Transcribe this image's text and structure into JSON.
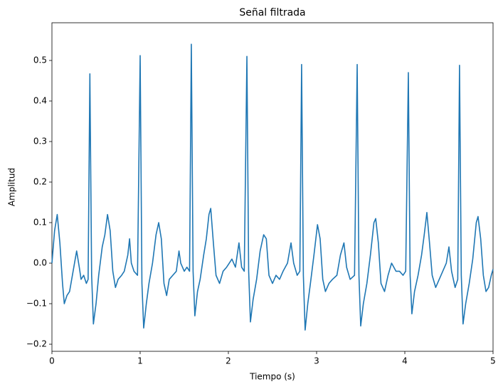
{
  "chart_data": {
    "type": "line",
    "title": "Señal filtrada",
    "x_label": "Tiempo (s)",
    "y_label": "Amplitud",
    "xlim": [
      0,
      5
    ],
    "ylim": [
      -0.2175,
      0.593
    ],
    "xticks": [
      0,
      1,
      2,
      3,
      4,
      5
    ],
    "yticks": [
      {
        "value": -0.2,
        "label": "−0.2"
      },
      {
        "value": -0.1,
        "label": "−0.1"
      },
      {
        "value": 0,
        "label": "0.0"
      },
      0.1,
      0.2,
      0.3,
      0.4,
      0.5
    ],
    "grid": false,
    "x": [
      0,
      0.03,
      0.06,
      0.09,
      0.12,
      0.14,
      0.17,
      0.2,
      0.24,
      0.28,
      0.31,
      0.33,
      0.36,
      0.39,
      0.41,
      0.43,
      0.45,
      0.47,
      0.5,
      0.53,
      0.57,
      0.6,
      0.63,
      0.66,
      0.69,
      0.72,
      0.75,
      0.79,
      0.82,
      0.86,
      0.88,
      0.9,
      0.93,
      0.97,
      1.0,
      1.02,
      1.04,
      1.07,
      1.1,
      1.14,
      1.18,
      1.21,
      1.24,
      1.27,
      1.3,
      1.33,
      1.37,
      1.41,
      1.44,
      1.46,
      1.5,
      1.53,
      1.56,
      1.58,
      1.6,
      1.62,
      1.65,
      1.68,
      1.72,
      1.75,
      1.78,
      1.8,
      1.83,
      1.86,
      1.9,
      1.94,
      1.98,
      2.01,
      2.04,
      2.08,
      2.12,
      2.15,
      2.18,
      2.21,
      2.23,
      2.25,
      2.28,
      2.32,
      2.36,
      2.4,
      2.43,
      2.46,
      2.5,
      2.54,
      2.58,
      2.62,
      2.67,
      2.71,
      2.74,
      2.78,
      2.81,
      2.83,
      2.85,
      2.87,
      2.9,
      2.93,
      2.97,
      3.01,
      3.04,
      3.07,
      3.1,
      3.14,
      3.18,
      3.23,
      3.27,
      3.31,
      3.34,
      3.38,
      3.43,
      3.46,
      3.48,
      3.5,
      3.53,
      3.57,
      3.61,
      3.65,
      3.67,
      3.7,
      3.73,
      3.77,
      3.81,
      3.85,
      3.9,
      3.94,
      3.98,
      4.01,
      4.04,
      4.06,
      4.08,
      4.11,
      4.15,
      4.19,
      4.22,
      4.25,
      4.28,
      4.31,
      4.35,
      4.39,
      4.43,
      4.47,
      4.5,
      4.53,
      4.57,
      4.6,
      4.62,
      4.64,
      4.66,
      4.69,
      4.73,
      4.77,
      4.81,
      4.83,
      4.86,
      4.89,
      4.92,
      4.95,
      4.98,
      5.0
    ],
    "series": [
      {
        "color": "#1f77b4",
        "values": [
          0,
          0.08,
          0.12,
          0.05,
          -0.05,
          -0.1,
          -0.08,
          -0.07,
          -0.02,
          0.03,
          -0.01,
          -0.04,
          -0.03,
          -0.05,
          -0.04,
          0.467,
          -0.03,
          -0.15,
          -0.1,
          -0.03,
          0.04,
          0.07,
          0.12,
          0.08,
          -0.02,
          -0.06,
          -0.04,
          -0.03,
          -0.02,
          0.02,
          0.06,
          0,
          -0.02,
          -0.03,
          0.512,
          -0.05,
          -0.16,
          -0.1,
          -0.05,
          0,
          0.07,
          0.1,
          0.06,
          -0.05,
          -0.08,
          -0.04,
          -0.03,
          -0.02,
          0.03,
          0,
          -0.02,
          -0.01,
          -0.02,
          0.54,
          -0.02,
          -0.13,
          -0.07,
          -0.04,
          0.02,
          0.06,
          0.12,
          0.135,
          0.05,
          -0.03,
          -0.05,
          -0.02,
          -0.01,
          0,
          0.01,
          -0.01,
          0.05,
          -0.01,
          -0.02,
          0.51,
          -0.02,
          -0.145,
          -0.09,
          -0.04,
          0.03,
          0.07,
          0.06,
          -0.03,
          -0.05,
          -0.03,
          -0.04,
          -0.02,
          0,
          0.05,
          0,
          -0.03,
          -0.02,
          0.49,
          -0.03,
          -0.165,
          -0.1,
          -0.05,
          0.02,
          0.095,
          0.06,
          -0.04,
          -0.07,
          -0.05,
          -0.04,
          -0.03,
          0.02,
          0.05,
          -0.01,
          -0.04,
          -0.03,
          0.49,
          -0.03,
          -0.155,
          -0.1,
          -0.05,
          0.02,
          0.1,
          0.11,
          0.05,
          -0.05,
          -0.07,
          -0.03,
          0,
          -0.02,
          -0.02,
          -0.03,
          -0.02,
          0.47,
          -0.03,
          -0.125,
          -0.07,
          -0.03,
          0.02,
          0.07,
          0.125,
          0.05,
          -0.03,
          -0.06,
          -0.04,
          -0.02,
          0,
          0.04,
          -0.02,
          -0.06,
          -0.04,
          0.488,
          -0.03,
          -0.15,
          -0.1,
          -0.05,
          0.01,
          0.1,
          0.115,
          0.06,
          -0.03,
          -0.07,
          -0.06,
          -0.03,
          -0.015
        ]
      }
    ]
  }
}
